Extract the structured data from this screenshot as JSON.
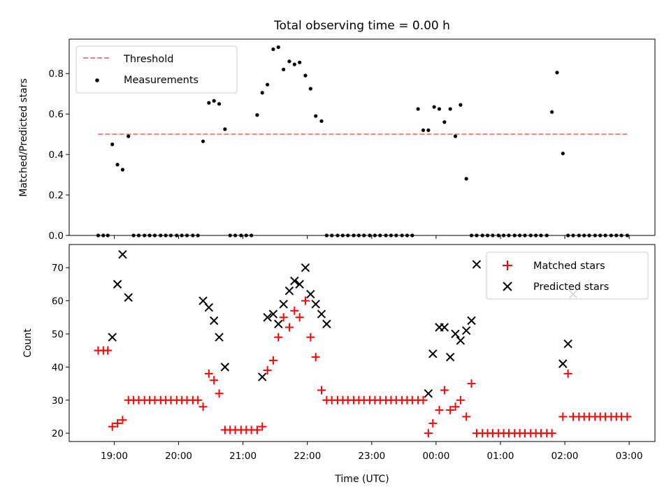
{
  "chart_data": [
    {
      "type": "scatter",
      "title": "Total observing time = 0.00 h",
      "ylabel": "Matched/Predicted stars",
      "xlabel": "",
      "x_range_hours": [
        18.3,
        27.4
      ],
      "ylim": [
        0,
        0.97
      ],
      "yticks": [
        0.0,
        0.2,
        0.4,
        0.6,
        0.8
      ],
      "ytick_labels": [
        "0.0",
        "0.2",
        "0.4",
        "0.6",
        "0.8"
      ],
      "xticks_hours": [
        19,
        20,
        21,
        22,
        23,
        24,
        25,
        26,
        27
      ],
      "legend": {
        "placement": "upper-left",
        "entries": [
          {
            "label": "Threshold",
            "color": "#f08080",
            "marker": "dashed-line"
          },
          {
            "label": "Measurements",
            "color": "#000000",
            "marker": "dot"
          }
        ]
      },
      "threshold": {
        "value": 0.5,
        "x_start": 18.75,
        "x_end": 27.0,
        "color": "#f08080"
      },
      "measurements": {
        "color": "#000000",
        "x_hours": [
          18.75,
          18.83,
          18.9,
          18.97,
          19.05,
          19.13,
          19.22,
          19.3,
          19.38,
          19.47,
          19.55,
          19.63,
          19.72,
          19.8,
          19.88,
          19.97,
          20.05,
          20.13,
          20.22,
          20.3,
          20.38,
          20.47,
          20.55,
          20.63,
          20.72,
          20.8,
          20.88,
          20.97,
          21.05,
          21.13,
          21.22,
          21.3,
          21.38,
          21.47,
          21.55,
          21.63,
          21.72,
          21.8,
          21.88,
          21.97,
          22.05,
          22.13,
          22.22,
          22.3,
          22.38,
          22.47,
          22.55,
          22.63,
          22.72,
          22.8,
          22.88,
          22.97,
          23.05,
          23.13,
          23.22,
          23.3,
          23.38,
          23.47,
          23.55,
          23.63,
          23.72,
          23.8,
          23.88,
          23.97,
          24.05,
          24.13,
          24.22,
          24.3,
          24.38,
          24.47,
          24.55,
          24.63,
          24.72,
          24.8,
          24.88,
          24.97,
          25.05,
          25.13,
          25.22,
          25.3,
          25.38,
          25.47,
          25.55,
          25.63,
          25.72,
          25.8,
          25.88,
          25.97,
          26.05,
          26.13,
          26.22,
          26.3,
          26.38,
          26.47,
          26.55,
          26.63,
          26.72,
          26.8,
          26.88,
          26.97
        ],
        "y": [
          0,
          0,
          0,
          0.45,
          0.35,
          0.325,
          0.49,
          0,
          0,
          0,
          0,
          0,
          0,
          0,
          0,
          0,
          0,
          0,
          0,
          0,
          0.465,
          0.655,
          0.665,
          0.65,
          0.525,
          0,
          0,
          0,
          0,
          0,
          0.595,
          0.705,
          0.745,
          0.92,
          0.93,
          0.82,
          0.86,
          0.845,
          0.855,
          0.79,
          0.725,
          0.59,
          0.565,
          0,
          0,
          0,
          0,
          0,
          0,
          0,
          0,
          0,
          0,
          0,
          0,
          0,
          0,
          0,
          0,
          0,
          0.625,
          0.52,
          0.52,
          0.635,
          0.625,
          0.56,
          0.625,
          0.49,
          0.645,
          0.28,
          0,
          0,
          0,
          0,
          0,
          0,
          0,
          0,
          0,
          0,
          0,
          0,
          0,
          0,
          0,
          0.61,
          0.805,
          0.405,
          0,
          0,
          0,
          0,
          0,
          0,
          0,
          0,
          0,
          0,
          0,
          0
        ]
      }
    },
    {
      "type": "scatter",
      "title": "",
      "ylabel": "Count",
      "xlabel": "Time (UTC)",
      "x_range_hours": [
        18.3,
        27.4
      ],
      "ylim": [
        17.5,
        77
      ],
      "yticks": [
        20,
        30,
        40,
        50,
        60,
        70
      ],
      "ytick_labels": [
        "20",
        "30",
        "40",
        "50",
        "60",
        "70"
      ],
      "xticks_hours": [
        19,
        20,
        21,
        22,
        23,
        24,
        25,
        26,
        27
      ],
      "xtick_labels": [
        "19:00",
        "20:00",
        "21:00",
        "22:00",
        "23:00",
        "00:00",
        "01:00",
        "02:00",
        "03:00"
      ],
      "legend": {
        "placement": "upper-right",
        "entries": [
          {
            "label": "Matched stars",
            "color": "#ff0000",
            "marker": "plus"
          },
          {
            "label": "Predicted stars",
            "color": "#000000",
            "marker": "x"
          }
        ]
      },
      "series": [
        {
          "name": "Matched stars",
          "color": "#ff0000",
          "marker": "plus",
          "points": [
            [
              18.75,
              45
            ],
            [
              18.83,
              45
            ],
            [
              18.9,
              45
            ],
            [
              18.97,
              22
            ],
            [
              19.05,
              23
            ],
            [
              19.13,
              24
            ],
            [
              19.22,
              30
            ],
            [
              19.3,
              30
            ],
            [
              19.38,
              30
            ],
            [
              19.47,
              30
            ],
            [
              19.55,
              30
            ],
            [
              19.63,
              30
            ],
            [
              19.72,
              30
            ],
            [
              19.8,
              30
            ],
            [
              19.88,
              30
            ],
            [
              19.97,
              30
            ],
            [
              20.05,
              30
            ],
            [
              20.13,
              30
            ],
            [
              20.22,
              30
            ],
            [
              20.3,
              30
            ],
            [
              20.38,
              28
            ],
            [
              20.47,
              38
            ],
            [
              20.55,
              36
            ],
            [
              20.63,
              32
            ],
            [
              20.72,
              21
            ],
            [
              20.8,
              21
            ],
            [
              20.88,
              21
            ],
            [
              20.97,
              21
            ],
            [
              21.05,
              21
            ],
            [
              21.13,
              21
            ],
            [
              21.22,
              21
            ],
            [
              21.3,
              22
            ],
            [
              21.38,
              39
            ],
            [
              21.47,
              42
            ],
            [
              21.55,
              49
            ],
            [
              21.63,
              55
            ],
            [
              21.72,
              52
            ],
            [
              21.8,
              57
            ],
            [
              21.88,
              55
            ],
            [
              21.97,
              60
            ],
            [
              22.05,
              49
            ],
            [
              22.13,
              43
            ],
            [
              22.22,
              33
            ],
            [
              22.3,
              30
            ],
            [
              22.38,
              30
            ],
            [
              22.47,
              30
            ],
            [
              22.55,
              30
            ],
            [
              22.63,
              30
            ],
            [
              22.72,
              30
            ],
            [
              22.8,
              30
            ],
            [
              22.88,
              30
            ],
            [
              22.97,
              30
            ],
            [
              23.05,
              30
            ],
            [
              23.13,
              30
            ],
            [
              23.22,
              30
            ],
            [
              23.3,
              30
            ],
            [
              23.38,
              30
            ],
            [
              23.47,
              30
            ],
            [
              23.55,
              30
            ],
            [
              23.63,
              30
            ],
            [
              23.72,
              30
            ],
            [
              23.8,
              30
            ],
            [
              23.88,
              20
            ],
            [
              23.95,
              23
            ],
            [
              24.05,
              27
            ],
            [
              24.13,
              33
            ],
            [
              24.22,
              27
            ],
            [
              24.3,
              28
            ],
            [
              24.38,
              30
            ],
            [
              24.47,
              25
            ],
            [
              24.55,
              35
            ],
            [
              24.63,
              20
            ],
            [
              24.72,
              20
            ],
            [
              24.8,
              20
            ],
            [
              24.88,
              20
            ],
            [
              24.97,
              20
            ],
            [
              25.05,
              20
            ],
            [
              25.13,
              20
            ],
            [
              25.22,
              20
            ],
            [
              25.3,
              20
            ],
            [
              25.38,
              20
            ],
            [
              25.47,
              20
            ],
            [
              25.55,
              20
            ],
            [
              25.63,
              20
            ],
            [
              25.72,
              20
            ],
            [
              25.8,
              20
            ],
            [
              25.97,
              25
            ],
            [
              26.05,
              38
            ],
            [
              26.13,
              25
            ],
            [
              26.22,
              25
            ],
            [
              26.3,
              25
            ],
            [
              26.38,
              25
            ],
            [
              26.47,
              25
            ],
            [
              26.55,
              25
            ],
            [
              26.63,
              25
            ],
            [
              26.72,
              25
            ],
            [
              26.8,
              25
            ],
            [
              26.88,
              25
            ],
            [
              26.97,
              25
            ]
          ]
        },
        {
          "name": "Predicted stars",
          "color": "#000000",
          "marker": "x",
          "points": [
            [
              18.97,
              49
            ],
            [
              19.05,
              65
            ],
            [
              19.13,
              74
            ],
            [
              19.22,
              61
            ],
            [
              20.38,
              60
            ],
            [
              20.47,
              58
            ],
            [
              20.55,
              54
            ],
            [
              20.63,
              49
            ],
            [
              20.72,
              40
            ],
            [
              21.3,
              37
            ],
            [
              21.38,
              55
            ],
            [
              21.47,
              56
            ],
            [
              21.55,
              53
            ],
            [
              21.63,
              59
            ],
            [
              21.72,
              63
            ],
            [
              21.8,
              66
            ],
            [
              21.88,
              65
            ],
            [
              21.97,
              70
            ],
            [
              22.05,
              62
            ],
            [
              22.13,
              59
            ],
            [
              22.22,
              56
            ],
            [
              22.3,
              53
            ],
            [
              23.88,
              32
            ],
            [
              23.95,
              44
            ],
            [
              24.05,
              52
            ],
            [
              24.13,
              52
            ],
            [
              24.22,
              43
            ],
            [
              24.3,
              50
            ],
            [
              24.38,
              48
            ],
            [
              24.47,
              51
            ],
            [
              24.55,
              54
            ],
            [
              24.63,
              71
            ],
            [
              25.97,
              41
            ],
            [
              26.05,
              47
            ],
            [
              26.13,
              62
            ]
          ]
        }
      ]
    }
  ]
}
